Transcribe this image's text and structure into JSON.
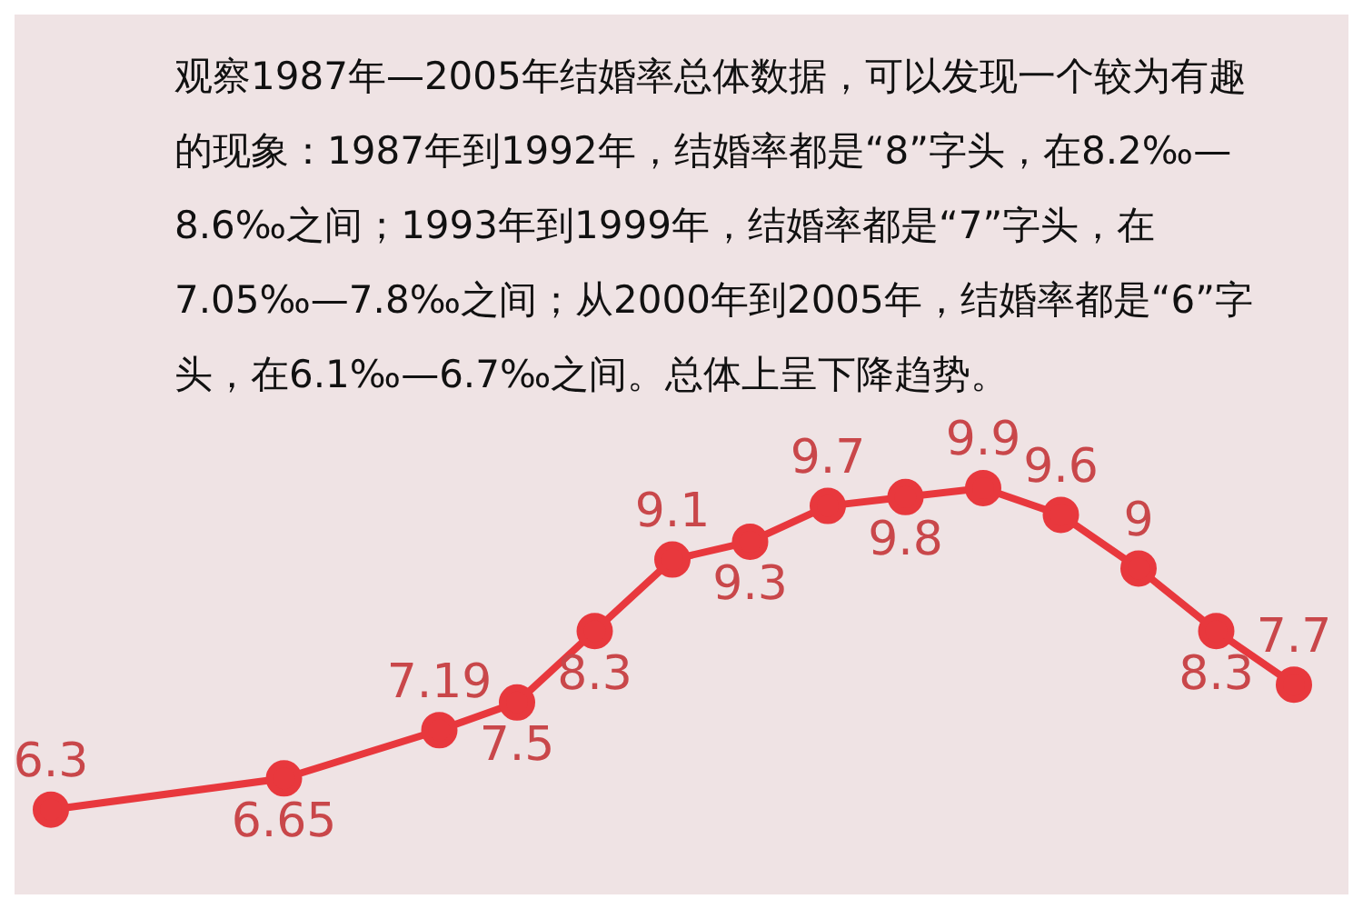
{
  "chart_data": {
    "type": "line",
    "title": "观察1987年—2005年结婚率总体数据，可以发现一个较为有趣的现象：1987年到1992年，结婚率都是“8”字头，在8.2‰—8.6‰之间；1993年到1999年，结婚率都是“7”字头，在7.05‰—7.8‰之间；从2000年到2005年，结婚率都是“6”字头，在6.1‰—6.7‰之间。总体上呈下降趋势。",
    "categories": [
      null,
      null,
      null,
      null,
      null,
      null,
      null,
      null,
      null,
      null,
      null,
      null,
      null,
      null,
      null,
      null,
      null
    ],
    "series": [
      {
        "color": "#e8383d",
        "values": [
          6.3,
          null,
          null,
          6.65,
          null,
          7.19,
          7.5,
          8.3,
          9.1,
          9.3,
          9.7,
          9.8,
          9.9,
          9.6,
          9,
          8.3,
          7.7
        ]
      }
    ],
    "data_labels": true,
    "marker": "circle",
    "line_style": "solid",
    "legend": false
  }
}
